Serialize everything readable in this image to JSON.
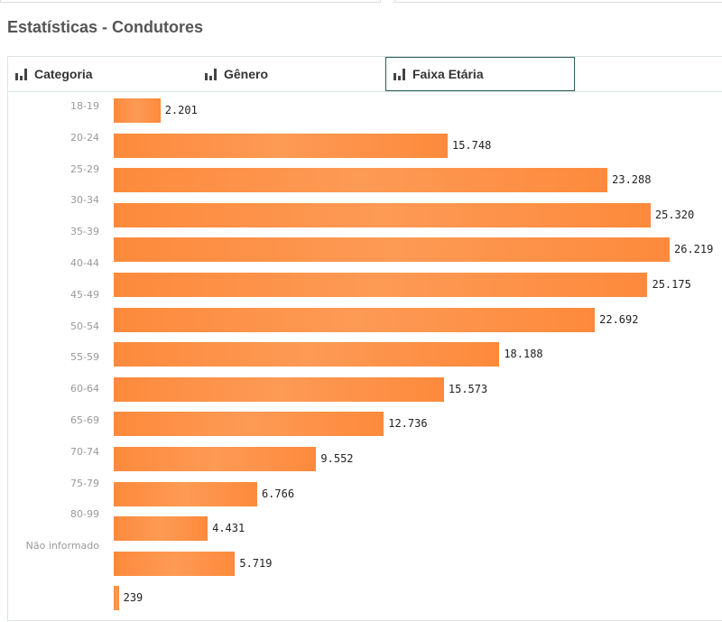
{
  "title": "Estatísticas - Condutores",
  "tabs": [
    {
      "label": "Categoria"
    },
    {
      "label": "Gênero"
    },
    {
      "label": "Faixa Etária",
      "active": true
    }
  ],
  "chart_data": {
    "type": "bar",
    "orientation": "horizontal",
    "categories": [
      "18-19",
      "20-24",
      "25-29",
      "30-34",
      "35-39",
      "40-44",
      "45-49",
      "50-54",
      "55-59",
      "60-64",
      "65-69",
      "70-74",
      "75-79",
      "80-99",
      "Não informado"
    ],
    "values": [
      2201,
      15748,
      23288,
      25320,
      26219,
      25175,
      22692,
      18188,
      15573,
      12736,
      9552,
      6766,
      4431,
      5719,
      239
    ],
    "value_labels": [
      "2.201",
      "15.748",
      "23.288",
      "25.320",
      "26.219",
      "25.175",
      "22.692",
      "18.188",
      "15.573",
      "12.736",
      "9.552",
      "6.766",
      "4.431",
      "5.719",
      "239"
    ],
    "color": "#fd8a3c"
  }
}
